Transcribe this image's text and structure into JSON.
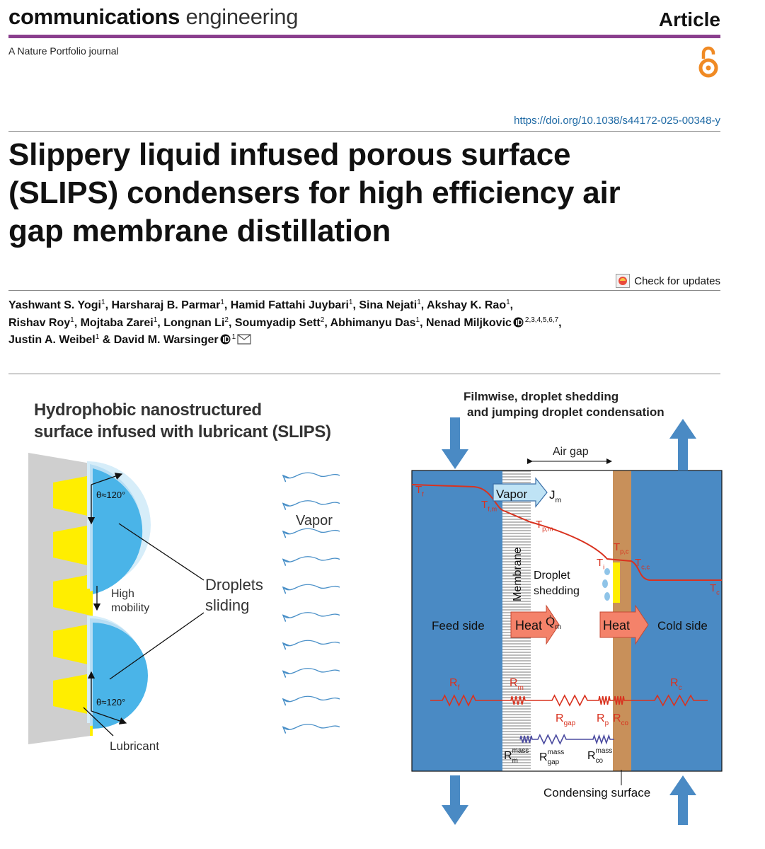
{
  "header": {
    "journal_bold": "communications",
    "journal_light": "engineering",
    "article_type": "Article",
    "subtitle": "A Nature Portfolio journal",
    "doi": "https://doi.org/10.1038/s44172-025-00348-y"
  },
  "title": [
    "Slippery liquid infused porous surface",
    "(SLIPS) condensers for high efficiency air",
    "gap membrane distillation"
  ],
  "check_updates": "Check for updates",
  "authors": [
    [
      {
        "name": "Yashwant S. Yogi",
        "aff": "1",
        "sep": ", "
      },
      {
        "name": "Harsharaj B. Parmar",
        "aff": "1",
        "sep": ", "
      },
      {
        "name": "Hamid Fattahi Juybari",
        "aff": "1",
        "sep": ", "
      },
      {
        "name": "Sina Nejati",
        "aff": "1",
        "sep": ", "
      },
      {
        "name": "Akshay K. Rao",
        "aff": "1",
        "sep": ","
      }
    ],
    [
      {
        "name": "Rishav Roy",
        "aff": "1",
        "sep": ", "
      },
      {
        "name": "Mojtaba Zarei",
        "aff": "1",
        "sep": ", "
      },
      {
        "name": "Longnan Li",
        "aff": "2",
        "sep": ", "
      },
      {
        "name": "Soumyadip Sett",
        "aff": "2",
        "sep": ", "
      },
      {
        "name": "Abhimanyu Das",
        "aff": "1",
        "sep": ", "
      },
      {
        "name": "Nenad Miljkovic",
        "aff": "2,3,4,5,6,7",
        "orcid": true,
        "sep": ","
      }
    ],
    [
      {
        "name": "Justin A. Weibel",
        "aff": "1",
        "sep": " & "
      },
      {
        "name": "David M. Warsinger",
        "aff": "1",
        "orcid": true,
        "email": true
      }
    ]
  ],
  "figure": {
    "left": {
      "title": [
        "Hydrophobic nanostructured",
        "surface infused with lubricant (SLIPS)"
      ],
      "angle_top": "θ≈120°",
      "angle_bottom": "θ≈120°",
      "mobility": [
        "High",
        "mobility"
      ],
      "droplets": [
        "Droplets",
        "sliding"
      ],
      "vapor": "Vapor",
      "lubricant": "Lubricant"
    },
    "right": {
      "modes": [
        "Filmwise, droplet shedding",
        "and jumping droplet condensation"
      ],
      "air_gap": "Air gap",
      "vapor": "Vapor",
      "flux": {
        "main": "J",
        "sub": "m"
      },
      "membrane": "Membrane",
      "shedding": [
        "Droplet",
        "shedding"
      ],
      "feed": "Feed side",
      "heat_left": "Heat",
      "heat_flux": {
        "main": "Q̇",
        "sub": "m"
      },
      "heat_right": "Heat",
      "cold": "Cold side",
      "temperatures": [
        {
          "main": "T",
          "sub": "f"
        },
        {
          "main": "T",
          "sub": "f,m"
        },
        {
          "main": "T",
          "sub": "p,m"
        },
        {
          "main": "T",
          "sub": "i"
        },
        {
          "main": "T",
          "sub": "p,c"
        },
        {
          "main": "T",
          "sub": "c,c"
        },
        {
          "main": "T",
          "sub": "c"
        }
      ],
      "resistances": [
        {
          "main": "R",
          "sub": "f"
        },
        {
          "main": "R",
          "sub": "m"
        },
        {
          "main": "R",
          "sub": "gap"
        },
        {
          "main": "R",
          "sub": "p"
        },
        {
          "main": "R",
          "sub": "co"
        },
        {
          "main": "R",
          "sub": "c"
        },
        {
          "main": "R",
          "sub": "m",
          "sup": "mass"
        },
        {
          "main": "R",
          "sub": "gap",
          "sup": "mass"
        },
        {
          "main": "R",
          "sub": "co",
          "sup": "mass"
        }
      ],
      "surface": "Condensing surface"
    }
  }
}
